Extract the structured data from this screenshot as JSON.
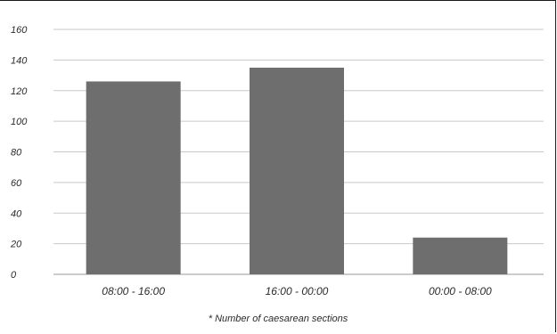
{
  "chart_data": {
    "type": "bar",
    "categories": [
      "08:00 - 16:00",
      "16:00 - 00:00",
      "00:00 - 08:00"
    ],
    "series": [
      {
        "name": "Number of caesarean sections",
        "values": [
          126,
          135,
          24
        ]
      }
    ],
    "yticks": [
      "0",
      "20",
      "40",
      "60",
      "80",
      "100",
      "120",
      "140",
      "160"
    ],
    "ylim": [
      0,
      160
    ],
    "grid": true,
    "legend": {
      "position": "bottom",
      "marker": "*"
    },
    "colors": {
      "bar": "#6e6e6e",
      "grid": "#c9c9c9",
      "baseline": "#9a9a9a"
    }
  }
}
